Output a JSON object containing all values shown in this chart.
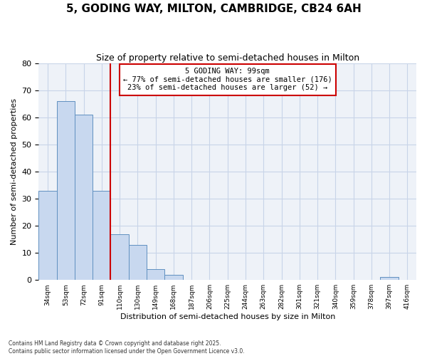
{
  "title_line1": "5, GODING WAY, MILTON, CAMBRIDGE, CB24 6AH",
  "title_line2": "Size of property relative to semi-detached houses in Milton",
  "xlabel": "Distribution of semi-detached houses by size in Milton",
  "ylabel": "Number of semi-detached properties",
  "bar_labels": [
    "34sqm",
    "53sqm",
    "72sqm",
    "91sqm",
    "110sqm",
    "130sqm",
    "149sqm",
    "168sqm",
    "187sqm",
    "206sqm",
    "225sqm",
    "244sqm",
    "263sqm",
    "282sqm",
    "301sqm",
    "321sqm",
    "340sqm",
    "359sqm",
    "378sqm",
    "397sqm",
    "416sqm"
  ],
  "bar_values": [
    33,
    66,
    61,
    33,
    17,
    13,
    4,
    2,
    0,
    0,
    0,
    0,
    0,
    0,
    0,
    0,
    0,
    0,
    0,
    1,
    0
  ],
  "bar_color": "#c8d8ef",
  "bar_edge_color": "#6090c0",
  "property_line_x": 3.5,
  "annotation_title": "5 GODING WAY: 99sqm",
  "annotation_line1": "← 77% of semi-detached houses are smaller (176)",
  "annotation_line2": "23% of semi-detached houses are larger (52) →",
  "red_line_color": "#cc0000",
  "annotation_box_edge_color": "#cc0000",
  "ylim": [
    0,
    80
  ],
  "yticks": [
    0,
    10,
    20,
    30,
    40,
    50,
    60,
    70,
    80
  ],
  "grid_color": "#c8d4e8",
  "background_color": "#eef2f8",
  "footer_line1": "Contains HM Land Registry data © Crown copyright and database right 2025.",
  "footer_line2": "Contains public sector information licensed under the Open Government Licence v3.0."
}
